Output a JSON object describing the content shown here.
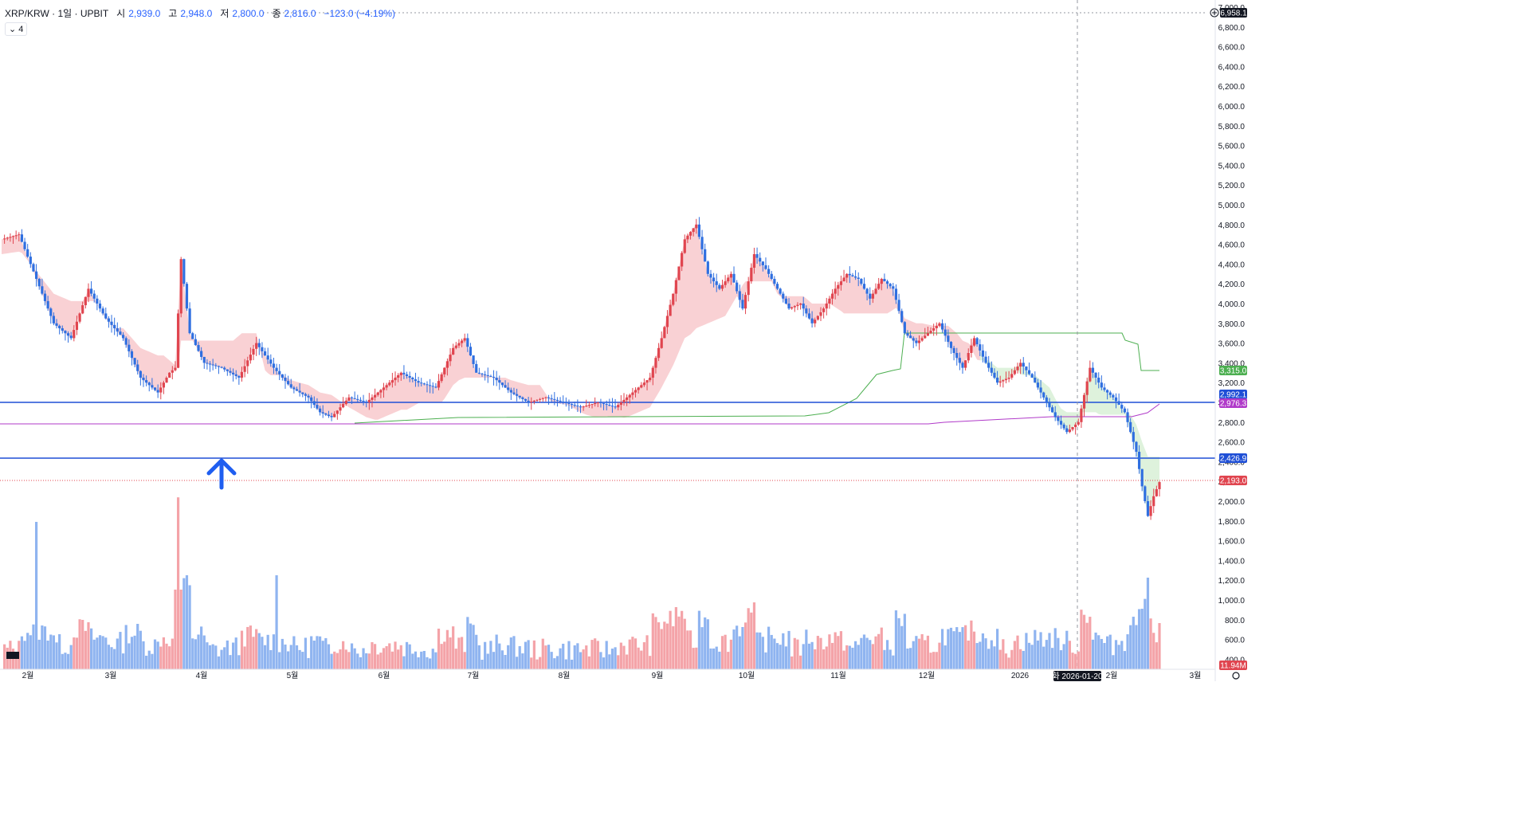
{
  "header": {
    "symbol": "XRP/KRW · 1일 · UPBIT",
    "open_label": "시",
    "open": "2,939.0",
    "high_label": "고",
    "high": "2,948.0",
    "low_label": "저",
    "low": "2,800.0",
    "close_label": "종",
    "close": "2,816.0",
    "change": "−123.0 (−4.19%)",
    "indicator_toggle": "⌄ 4"
  },
  "colors": {
    "up": "#e0454f",
    "down": "#2f6fe0",
    "cloud_bear": "#f8c9cc",
    "cloud_bull": "#d8f0d6",
    "green_line": "#4caf50",
    "purple_line": "#b03ac9",
    "hline": "#1f4fd6",
    "price_line": "#e0454f",
    "arrow": "#1f5ef0"
  },
  "axis": {
    "y_ticks": [
      "7,000.0",
      "6,800.0",
      "6,600.0",
      "6,400.0",
      "6,200.0",
      "6,000.0",
      "5,800.0",
      "5,600.0",
      "5,400.0",
      "5,200.0",
      "5,000.0",
      "4,800.0",
      "4,600.0",
      "4,400.0",
      "4,200.0",
      "4,000.0",
      "3,800.0",
      "3,600.0",
      "3,400.0",
      "3,200.0",
      "3,000.0",
      "2,800.0",
      "2,600.0",
      "2,400.0",
      "2,200.0",
      "2,000.0",
      "1,800.0",
      "1,600.0",
      "1,400.0",
      "1,200.0",
      "1,000.0",
      "800.0",
      "600.0",
      "400.0"
    ],
    "x_ticks": [
      "2월",
      "3월",
      "4월",
      "5월",
      "6월",
      "7월",
      "8월",
      "9월",
      "10월",
      "11월",
      "12월",
      "2026",
      "2월",
      "3월"
    ],
    "crosshair_date": "화 2026-01-20",
    "top_tag": "6,958.1"
  },
  "price_tags": [
    {
      "text": "3,315.0",
      "color": "#4caf50"
    },
    {
      "text": "2,992.1",
      "color": "#1f4fd6"
    },
    {
      "text": "2,976.3",
      "color": "#b03ac9"
    },
    {
      "text": "2,426.9",
      "color": "#1f4fd6"
    },
    {
      "text": "2,193.0",
      "color": "#e0454f"
    },
    {
      "text": "11.94M",
      "color": "#e0454f"
    }
  ],
  "chart_data": {
    "type": "candlestick",
    "title": "XRP/KRW · 1일 · UPBIT",
    "x": [
      "2025-01",
      "2025-02",
      "2025-03",
      "2025-04",
      "2025-05",
      "2025-06",
      "2025-07",
      "2025-08",
      "2025-09",
      "2025-10",
      "2025-11",
      "2025-12",
      "2026-01",
      "2026-02"
    ],
    "series": [
      {
        "name": "close",
        "values": [
          4700,
          4000,
          3100,
          3050,
          3350,
          3020,
          3000,
          4700,
          3800,
          3950,
          4150,
          3450,
          2800,
          2193
        ]
      }
    ],
    "horizontal_lines": [
      2992.1,
      2426.9
    ],
    "current_price": 2193.0,
    "ylim": [
      400,
      7000
    ],
    "grid": false
  }
}
